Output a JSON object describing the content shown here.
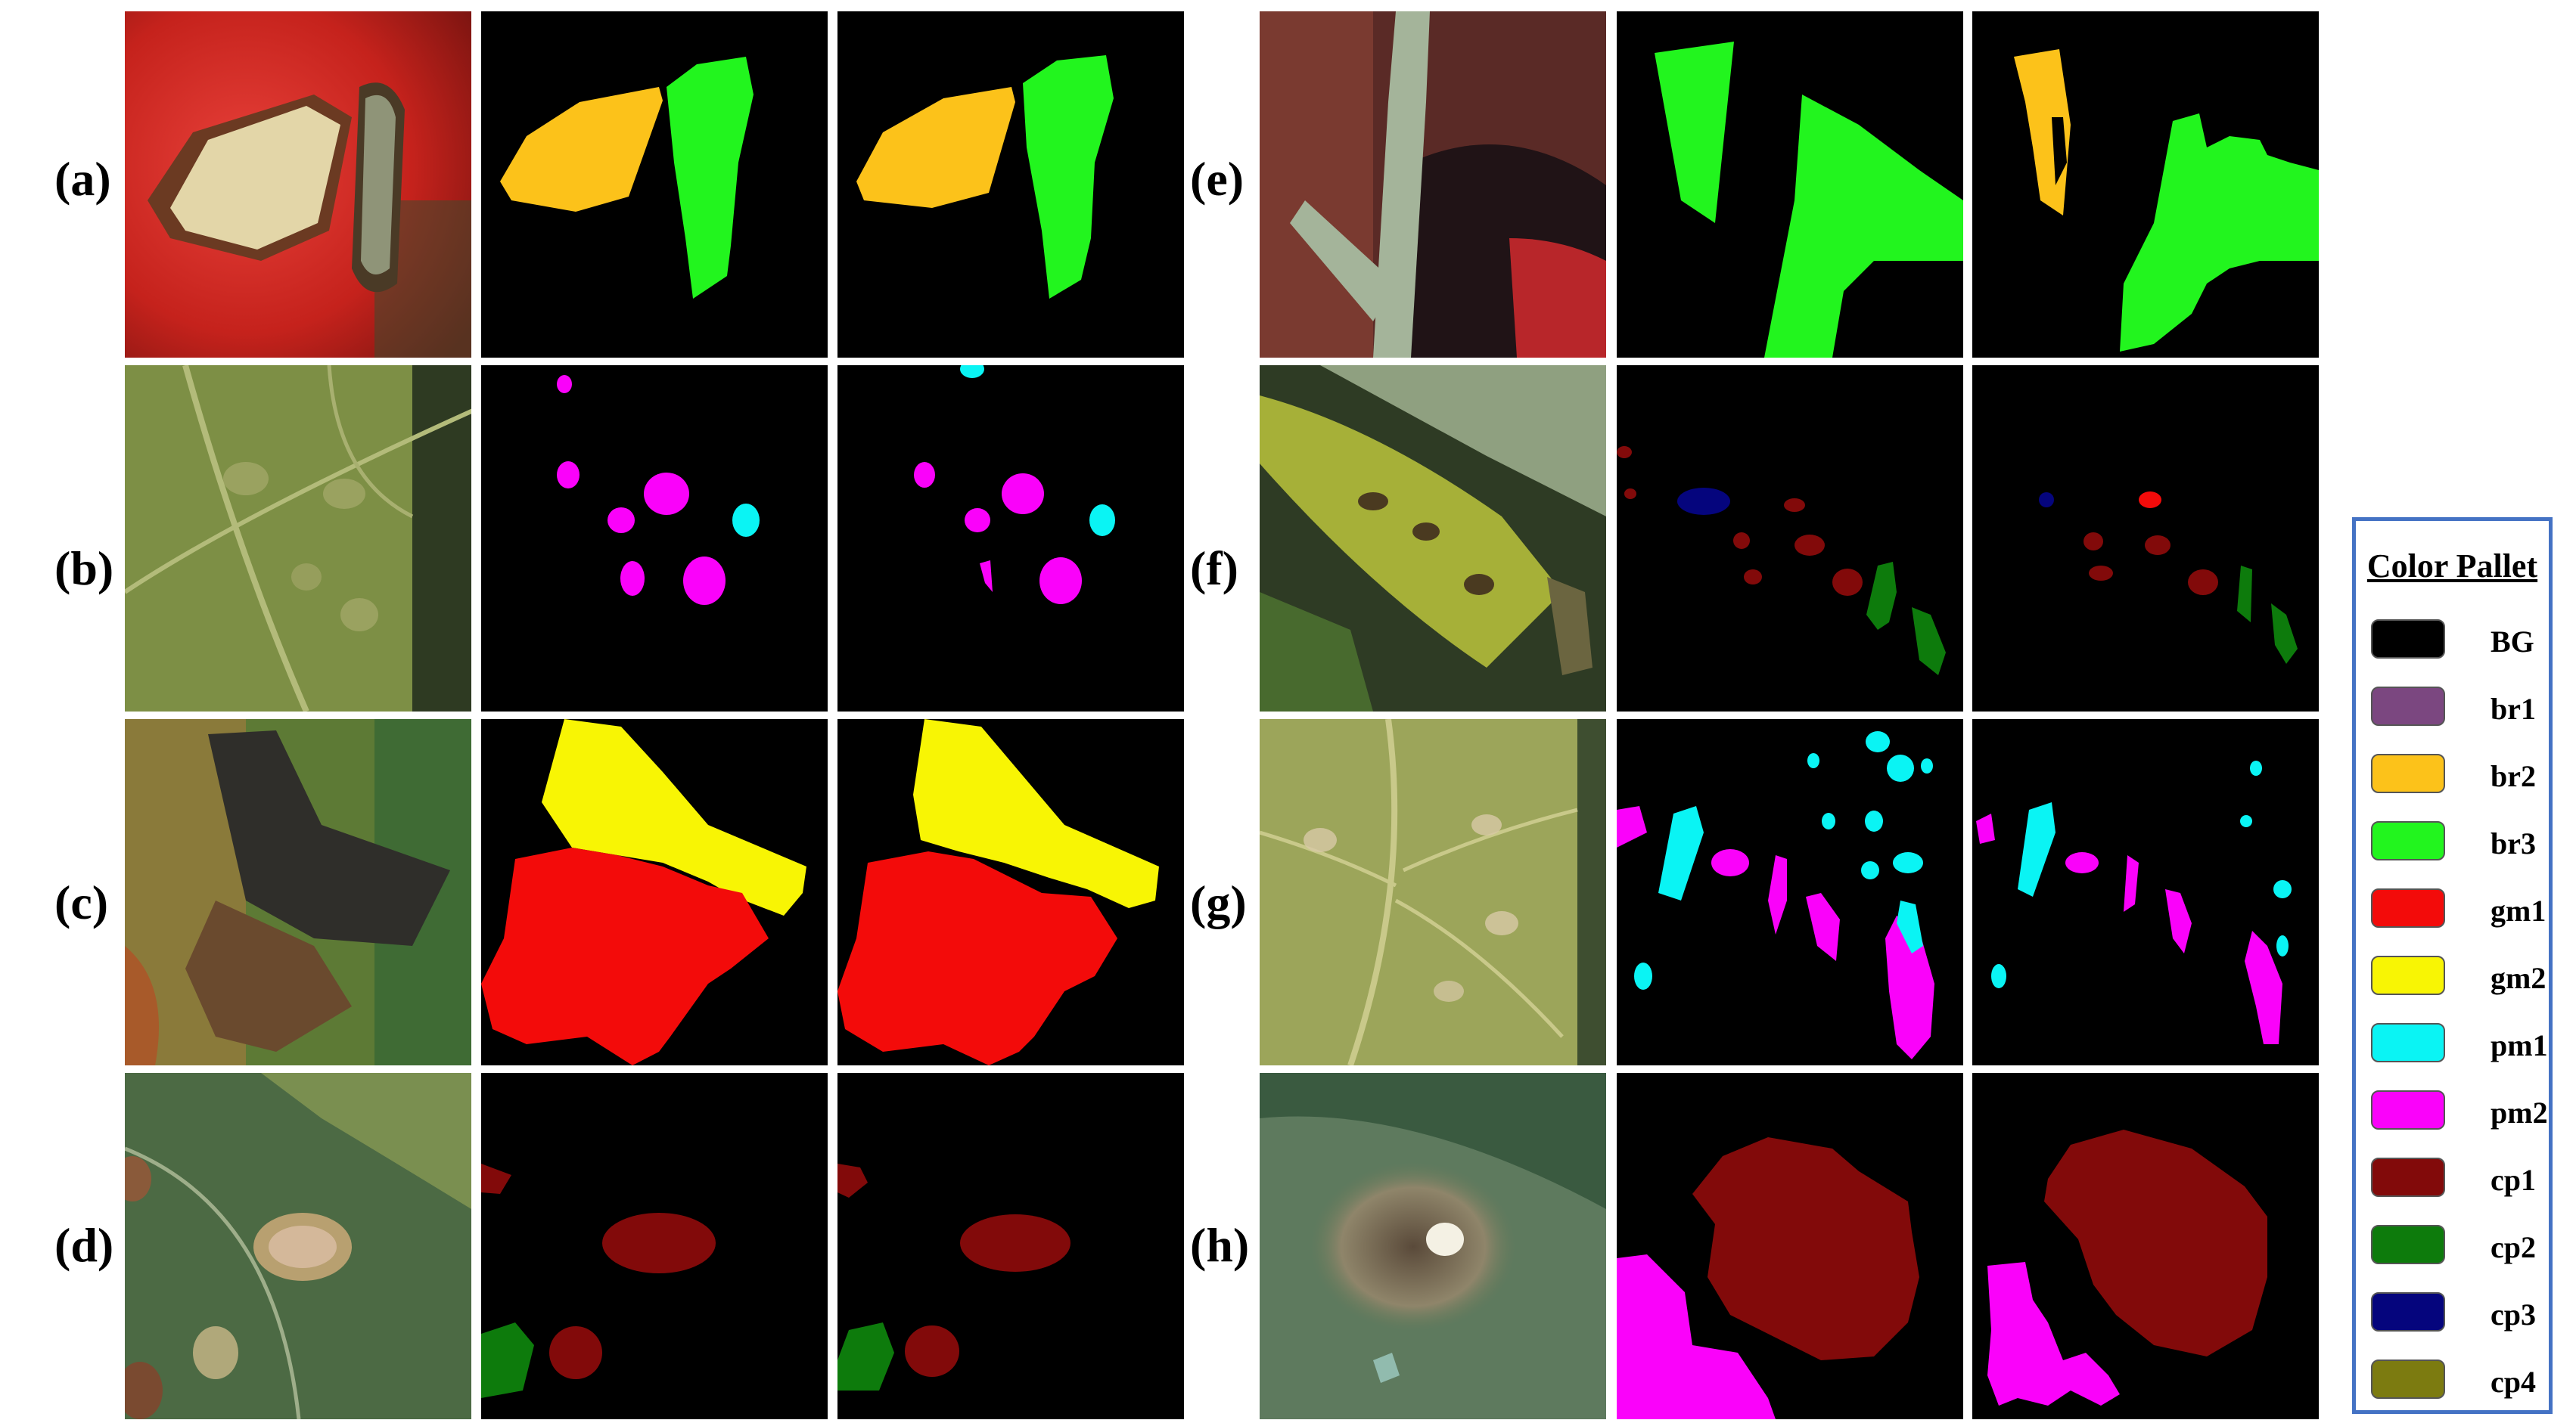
{
  "rows": [
    {
      "label": "(a)"
    },
    {
      "label": "(b)"
    },
    {
      "label": "(c)"
    },
    {
      "label": "(d)"
    },
    {
      "label": "(e)"
    },
    {
      "label": "(f)"
    },
    {
      "label": "(g)"
    },
    {
      "label": "(h)"
    }
  ],
  "legend": {
    "title": "Color Pallet",
    "items": [
      {
        "label": "BG",
        "color": "#000000"
      },
      {
        "label": "br1",
        "color": "#7b4780"
      },
      {
        "label": "br2",
        "color": "#fcc21a"
      },
      {
        "label": "br3",
        "color": "#22f51e"
      },
      {
        "label": "gm1",
        "color": "#f30b0a"
      },
      {
        "label": "gm2",
        "color": "#f8f504"
      },
      {
        "label": "pm1",
        "color": "#0af4f4"
      },
      {
        "label": "pm2",
        "color": "#fa02fa"
      },
      {
        "label": "cp1",
        "color": "#820a0a"
      },
      {
        "label": "cp2",
        "color": "#0d7b0c"
      },
      {
        "label": "cp3",
        "color": "#05057d"
      },
      {
        "label": "cp4",
        "color": "#7c7b10"
      }
    ]
  }
}
